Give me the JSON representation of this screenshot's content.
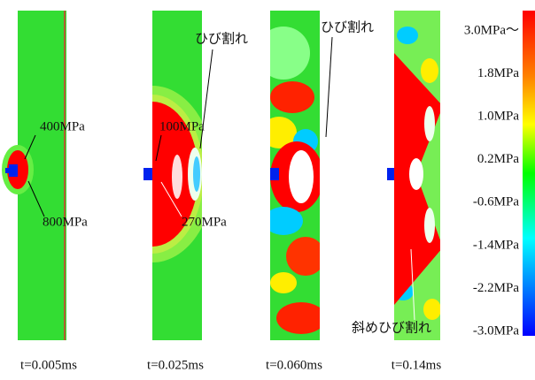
{
  "panels": [
    {
      "time": "t=0.005ms",
      "annotations": [
        "400MPa",
        "800MPa"
      ]
    },
    {
      "time": "t=0.025ms",
      "annotations": [
        "100MPa",
        "270MPa",
        "ひび割れ"
      ]
    },
    {
      "time": "t=0.060ms",
      "annotations": [
        "ひび割れ"
      ]
    },
    {
      "time": "t=0.14ms",
      "annotations": [
        "斜めひび割れ"
      ]
    }
  ],
  "colorbar": {
    "labels": [
      "3.0MPa〜",
      "1.8MPa",
      "1.0MPa",
      "0.2MPa",
      "-0.6MPa",
      "-1.4MPa",
      "-2.2MPa",
      "-3.0MPa"
    ]
  }
}
